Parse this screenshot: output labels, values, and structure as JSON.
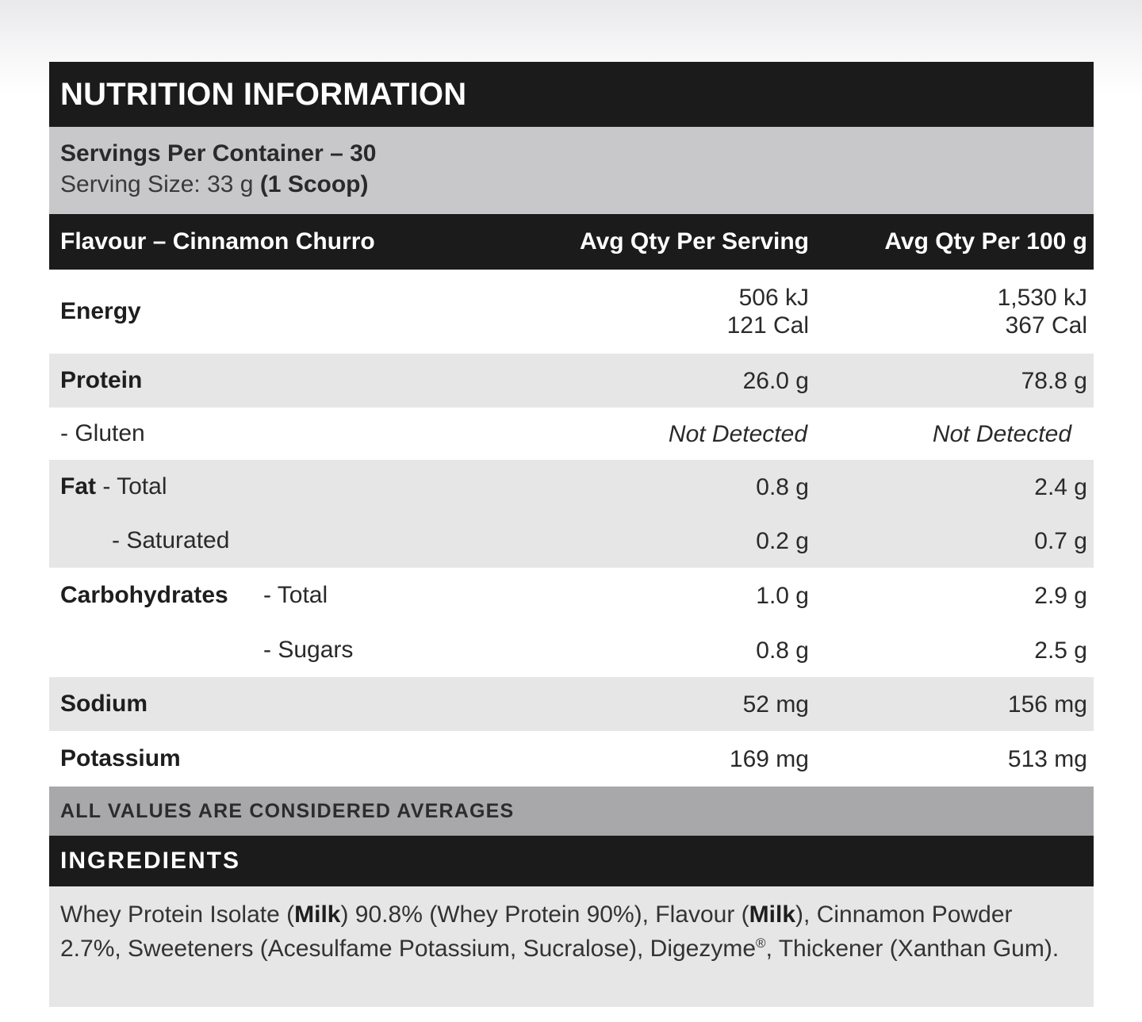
{
  "title": "NUTRITION INFORMATION",
  "servings": {
    "per_container": "Servings Per Container – 30",
    "size_label": "Serving Size: 33 g ",
    "size_scoop": "(1 Scoop)"
  },
  "columns": {
    "flavour": "Flavour – Cinnamon Churro",
    "per_serving": "Avg Qty Per Serving",
    "per_100g": "Avg Qty Per 100 g"
  },
  "rows": {
    "energy": {
      "label": "Energy",
      "serving_kj": "506 kJ",
      "serving_cal": "121 Cal",
      "per100_kj": "1,530 kJ",
      "per100_cal": "367 Cal"
    },
    "protein": {
      "label": "Protein",
      "serving": "26.0 g",
      "per100": "78.8 g"
    },
    "gluten": {
      "label": "- Gluten",
      "serving": "Not Detected",
      "per100": "Not Detected"
    },
    "fat_total": {
      "label_bold": "Fat",
      "label_rest": " - Total",
      "serving": "0.8 g",
      "per100": "2.4 g"
    },
    "fat_saturated": {
      "label": "- Saturated",
      "serving": "0.2 g",
      "per100": "0.7 g"
    },
    "carbs_total": {
      "label_bold": "Carbohydrates",
      "label_rest": "- Total",
      "serving": "1.0 g",
      "per100": "2.9 g"
    },
    "carbs_sugars": {
      "label": "- Sugars",
      "serving": "0.8 g",
      "per100": "2.5 g"
    },
    "sodium": {
      "label": "Sodium",
      "serving": "52 mg",
      "per100": "156 mg"
    },
    "potassium": {
      "label": "Potassium",
      "serving": "169 mg",
      "per100": "513 mg"
    }
  },
  "footer_note": "ALL VALUES ARE CONSIDERED AVERAGES",
  "ingredients": {
    "heading": "INGREDIENTS",
    "part1": "Whey Protein Isolate (",
    "milk1": "Milk",
    "part2": ") 90.8% (Whey Protein 90%), Flavour (",
    "milk2": "Milk",
    "part3": "), Cinnamon Powder 2.7%, Sweeteners (Acesulfame Potassium, Sucralose), Digezyme",
    "reg": "®",
    "part4": ", Thickener (Xanthan Gum)."
  }
}
